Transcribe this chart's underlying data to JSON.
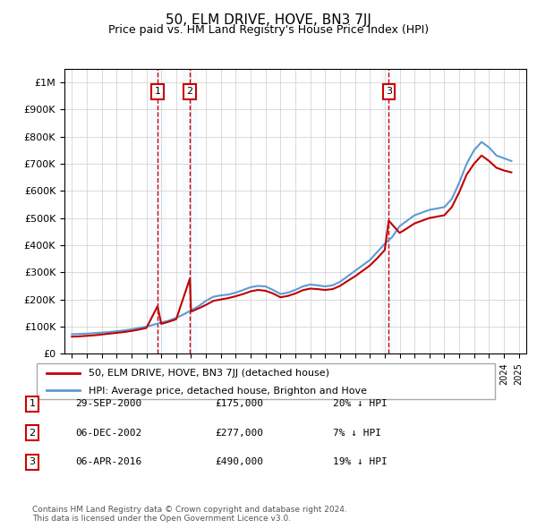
{
  "title": "50, ELM DRIVE, HOVE, BN3 7JJ",
  "subtitle": "Price paid vs. HM Land Registry's House Price Index (HPI)",
  "footer": "Contains HM Land Registry data © Crown copyright and database right 2024.\nThis data is licensed under the Open Government Licence v3.0.",
  "legend_line1": "50, ELM DRIVE, HOVE, BN3 7JJ (detached house)",
  "legend_line2": "HPI: Average price, detached house, Brighton and Hove",
  "transactions": [
    {
      "num": 1,
      "date": "29-SEP-2000",
      "price": 175000,
      "pct": "20%",
      "direction": "↓",
      "year_x": 2000.75
    },
    {
      "num": 2,
      "date": "06-DEC-2002",
      "price": 277000,
      "pct": "7%",
      "direction": "↓",
      "year_x": 2002.92
    },
    {
      "num": 3,
      "date": "06-APR-2016",
      "price": 490000,
      "pct": "19%",
      "direction": "↓",
      "year_x": 2016.27
    }
  ],
  "hpi_color": "#5b9bd5",
  "price_color": "#c00000",
  "marker_box_color": "#cc0000",
  "shading_color": "#ddeeff",
  "ylim": [
    0,
    1050000
  ],
  "yticks": [
    0,
    100000,
    200000,
    300000,
    400000,
    500000,
    600000,
    700000,
    800000,
    900000,
    1000000
  ],
  "xlim_start": 1994.5,
  "xlim_end": 2025.5,
  "hpi_data": {
    "years": [
      1995,
      1995.5,
      1996,
      1996.5,
      1997,
      1997.5,
      1998,
      1998.5,
      1999,
      1999.5,
      2000,
      2000.5,
      2001,
      2001.5,
      2002,
      2002.5,
      2003,
      2003.5,
      2004,
      2004.5,
      2005,
      2005.5,
      2006,
      2006.5,
      2007,
      2007.5,
      2008,
      2008.5,
      2009,
      2009.5,
      2010,
      2010.5,
      2011,
      2011.5,
      2012,
      2012.5,
      2013,
      2013.5,
      2014,
      2014.5,
      2015,
      2015.5,
      2016,
      2016.5,
      2017,
      2017.5,
      2018,
      2018.5,
      2019,
      2019.5,
      2020,
      2020.5,
      2021,
      2021.5,
      2022,
      2022.5,
      2023,
      2023.5,
      2024,
      2024.5
    ],
    "values": [
      72000,
      73000,
      74000,
      76000,
      78000,
      80000,
      83000,
      86000,
      90000,
      95000,
      100000,
      107000,
      115000,
      122000,
      132000,
      145000,
      160000,
      175000,
      195000,
      210000,
      215000,
      218000,
      225000,
      235000,
      245000,
      250000,
      248000,
      235000,
      220000,
      225000,
      235000,
      248000,
      255000,
      252000,
      248000,
      252000,
      265000,
      285000,
      305000,
      325000,
      345000,
      375000,
      405000,
      430000,
      470000,
      490000,
      510000,
      520000,
      530000,
      535000,
      540000,
      570000,
      630000,
      700000,
      750000,
      780000,
      760000,
      730000,
      720000,
      710000
    ]
  },
  "price_data": {
    "years": [
      1995,
      1995.5,
      1996,
      1996.5,
      1997,
      1997.5,
      1998,
      1998.5,
      1999,
      1999.5,
      2000,
      2000.75,
      2001,
      2001.5,
      2002,
      2002.92,
      2003,
      2003.5,
      2004,
      2004.5,
      2005,
      2005.5,
      2006,
      2006.5,
      2007,
      2007.5,
      2008,
      2008.5,
      2009,
      2009.5,
      2010,
      2010.5,
      2011,
      2011.5,
      2012,
      2012.5,
      2013,
      2013.5,
      2014,
      2014.5,
      2015,
      2015.5,
      2016,
      2016.27,
      2017,
      2017.5,
      2018,
      2018.5,
      2019,
      2019.5,
      2020,
      2020.5,
      2021,
      2021.5,
      2022,
      2022.5,
      2023,
      2023.5,
      2024,
      2024.5
    ],
    "values": [
      63000,
      64000,
      66000,
      68000,
      71000,
      74000,
      77000,
      80000,
      84000,
      89000,
      95000,
      175000,
      110000,
      118000,
      127000,
      277000,
      155000,
      167000,
      180000,
      195000,
      200000,
      205000,
      212000,
      220000,
      230000,
      235000,
      232000,
      222000,
      208000,
      213000,
      222000,
      234000,
      240000,
      238000,
      235000,
      238000,
      250000,
      268000,
      285000,
      305000,
      325000,
      352000,
      382000,
      490000,
      445000,
      462000,
      480000,
      490000,
      500000,
      505000,
      510000,
      540000,
      595000,
      660000,
      700000,
      730000,
      710000,
      685000,
      675000,
      668000
    ]
  }
}
